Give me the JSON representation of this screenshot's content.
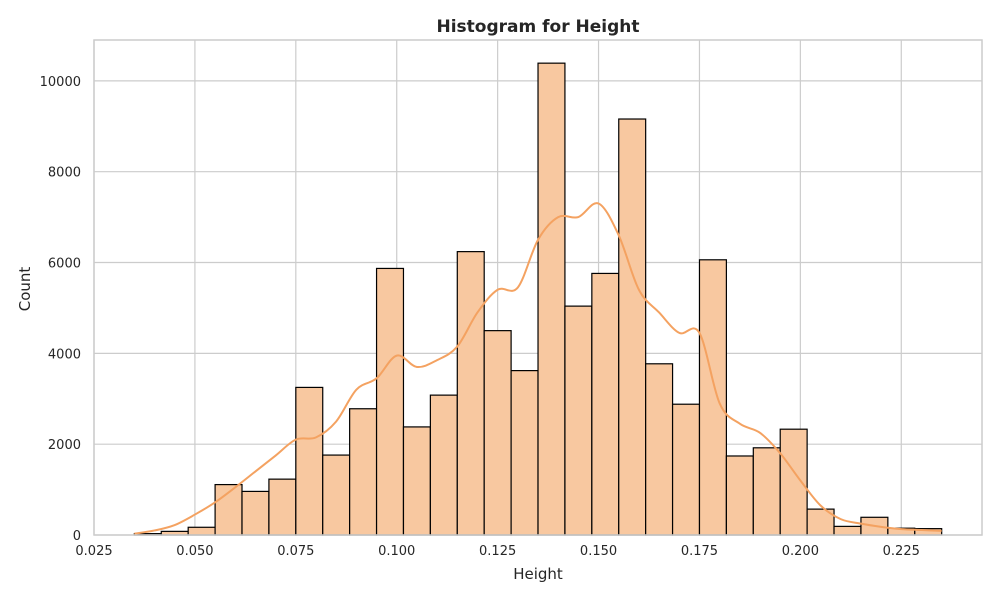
{
  "chart_data": {
    "type": "histogram",
    "title": "Histogram for Height",
    "xlabel": "Height",
    "ylabel": "Count",
    "xlim": [
      0.025,
      0.245
    ],
    "ylim": [
      0,
      10900
    ],
    "x_ticks": [
      "0.025",
      "0.050",
      "0.075",
      "0.100",
      "0.125",
      "0.150",
      "0.175",
      "0.200",
      "0.225"
    ],
    "x_tick_values": [
      0.025,
      0.05,
      0.075,
      0.1,
      0.125,
      0.15,
      0.175,
      0.2,
      0.225
    ],
    "y_ticks": [
      "0",
      "2000",
      "4000",
      "6000",
      "8000",
      "10000"
    ],
    "y_tick_values": [
      0,
      2000,
      4000,
      6000,
      8000,
      10000
    ],
    "grid": true,
    "colors": {
      "bar_fill": "#f8c8a0",
      "bar_edge": "#000000",
      "kde_line": "#f4a261",
      "grid": "#cccccc",
      "frame": "#cccccc"
    },
    "bins": {
      "start": 0.035,
      "width": 0.006667,
      "counts": [
        30,
        80,
        170,
        1110,
        960,
        1230,
        3250,
        1760,
        2780,
        5870,
        2380,
        3080,
        6240,
        4500,
        3620,
        10390,
        5040,
        5760,
        9160,
        3770,
        2880,
        6060,
        1740,
        1920,
        2330,
        570,
        190,
        390,
        150,
        140
      ]
    },
    "kde": {
      "x": [
        0.035,
        0.04,
        0.045,
        0.05,
        0.055,
        0.06,
        0.065,
        0.07,
        0.075,
        0.08,
        0.085,
        0.09,
        0.095,
        0.1,
        0.105,
        0.11,
        0.115,
        0.12,
        0.125,
        0.13,
        0.135,
        0.14,
        0.145,
        0.15,
        0.155,
        0.16,
        0.165,
        0.17,
        0.175,
        0.18,
        0.185,
        0.19,
        0.195,
        0.2,
        0.205,
        0.21,
        0.215,
        0.22,
        0.225,
        0.23,
        0.235
      ],
      "y": [
        30,
        100,
        220,
        450,
        720,
        1050,
        1400,
        1750,
        2100,
        2150,
        2500,
        3200,
        3450,
        3950,
        3700,
        3850,
        4150,
        4900,
        5400,
        5450,
        6500,
        7000,
        7000,
        7300,
        6600,
        5400,
        4900,
        4450,
        4450,
        2900,
        2450,
        2250,
        1800,
        1200,
        650,
        350,
        250,
        180,
        130,
        110,
        90
      ]
    }
  }
}
